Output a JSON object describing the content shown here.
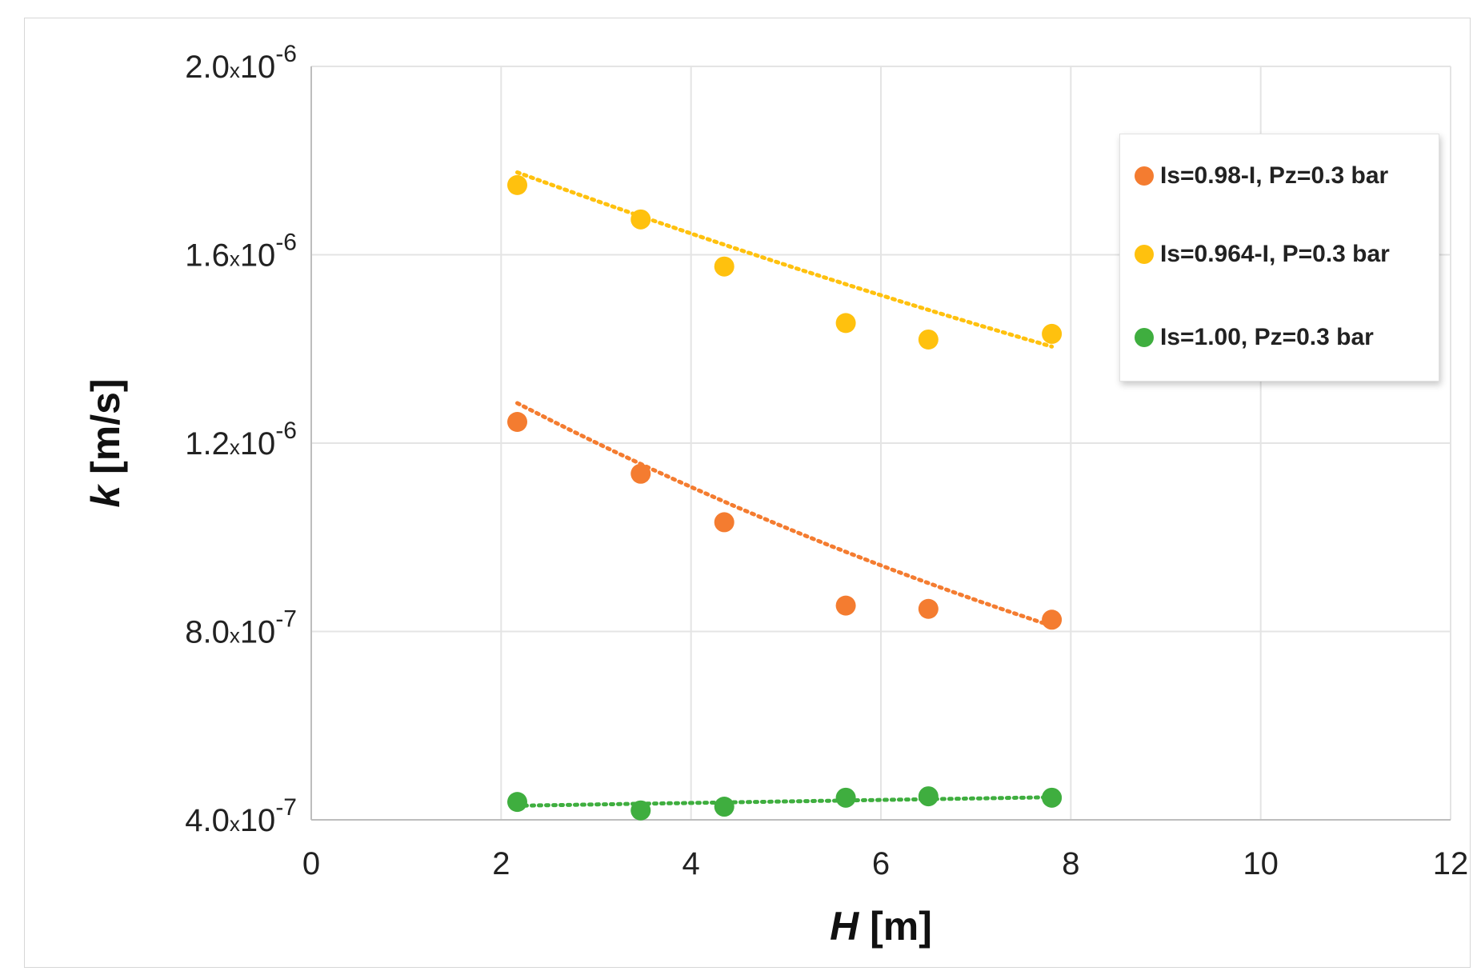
{
  "chart_data": {
    "type": "scatter",
    "title": "",
    "xlabel": "H",
    "xlabel_unit": "[m]",
    "ylabel": "k",
    "ylabel_unit": "[m/s]",
    "xlim": [
      0,
      12
    ],
    "ylim": [
      4e-07,
      2e-06
    ],
    "x_ticks": [
      0,
      2,
      4,
      6,
      8,
      10,
      12
    ],
    "x_tick_labels": [
      "0",
      "2",
      "4",
      "6",
      "8",
      "10",
      "12"
    ],
    "y_ticks": [
      {
        "value": 4e-07,
        "mantissa": "4.0",
        "times": "x10",
        "exponent": "-7"
      },
      {
        "value": 8e-07,
        "mantissa": "8.0",
        "times": "x10",
        "exponent": "-7"
      },
      {
        "value": 1.2e-06,
        "mantissa": "1.2",
        "times": "x10",
        "exponent": "-6"
      },
      {
        "value": 1.6e-06,
        "mantissa": "1.6",
        "times": "x10",
        "exponent": "-6"
      },
      {
        "value": 2e-06,
        "mantissa": "2.0",
        "times": "x10",
        "exponent": "-6"
      }
    ],
    "grid": true,
    "legend_position": "top-right",
    "series": [
      {
        "name": "Is=0.98-I, Pz=0.3 bar",
        "color": "#F47C30",
        "x": [
          2.17,
          3.47,
          4.35,
          5.63,
          6.5,
          7.8
        ],
        "y": [
          1.245e-06,
          1.135e-06,
          1.032e-06,
          8.55e-07,
          8.48e-07,
          8.25e-07
        ],
        "trendline": {
          "type": "dotted",
          "x": [
            2.17,
            7.8
          ],
          "fit": "exponential",
          "start_y": 1.285e-06,
          "end_y": 8.12e-07
        }
      },
      {
        "name": "Is=0.964-I, P=0.3 bar",
        "color": "#FFC10E",
        "x": [
          2.17,
          3.47,
          4.35,
          5.63,
          6.5,
          7.8
        ],
        "y": [
          1.748e-06,
          1.675e-06,
          1.575e-06,
          1.455e-06,
          1.42e-06,
          1.432e-06
        ],
        "trendline": {
          "type": "dotted",
          "x": [
            2.17,
            7.8
          ],
          "fit": "exponential",
          "start_y": 1.775e-06,
          "end_y": 1.405e-06
        }
      },
      {
        "name": "Is=1.00, Pz=0.3 bar",
        "color": "#3FAE3F",
        "x": [
          2.17,
          3.47,
          4.35,
          5.63,
          6.5,
          7.8
        ],
        "y": [
          4.38e-07,
          4.2e-07,
          4.28e-07,
          4.47e-07,
          4.5e-07,
          4.47e-07
        ],
        "trendline": {
          "type": "dotted",
          "x": [
            2.17,
            7.8
          ],
          "fit": "linear",
          "start_y": 4.3e-07,
          "end_y": 4.48e-07
        }
      }
    ]
  }
}
